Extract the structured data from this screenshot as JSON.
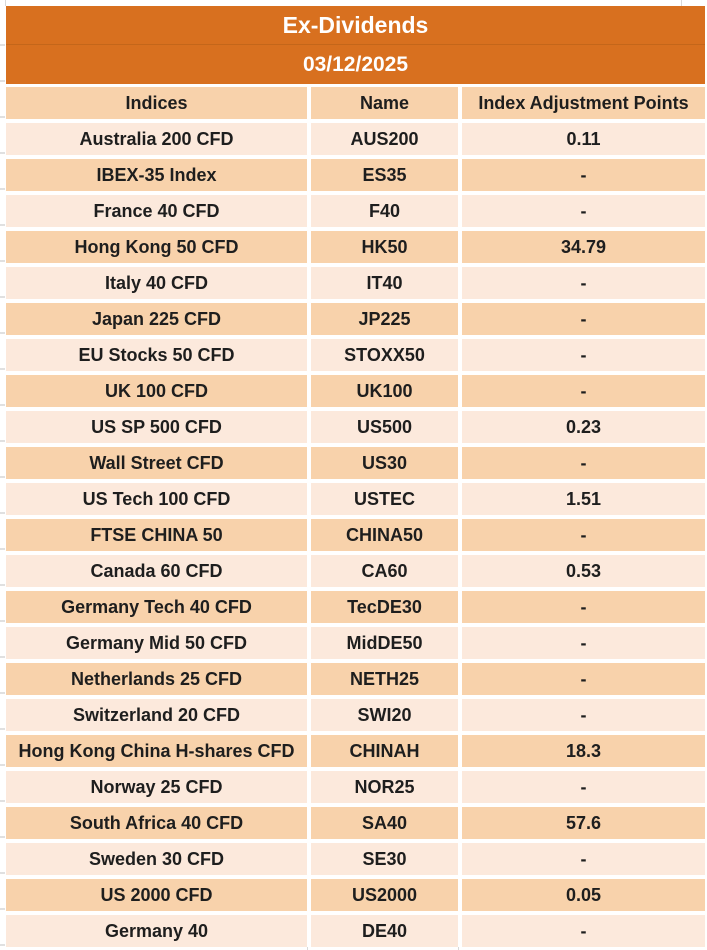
{
  "table": {
    "title": "Ex-Dividends",
    "date": "03/12/2025",
    "columns": [
      "Indices",
      "Name",
      "Index Adjustment Points"
    ],
    "rows": [
      {
        "indices": "Australia 200 CFD",
        "name": "AUS200",
        "points": "0.11"
      },
      {
        "indices": "IBEX-35 Index",
        "name": "ES35",
        "points": "-"
      },
      {
        "indices": "France 40 CFD",
        "name": "F40",
        "points": "-"
      },
      {
        "indices": "Hong Kong 50 CFD",
        "name": "HK50",
        "points": "34.79"
      },
      {
        "indices": "Italy 40 CFD",
        "name": "IT40",
        "points": "-"
      },
      {
        "indices": "Japan 225 CFD",
        "name": "JP225",
        "points": "-"
      },
      {
        "indices": "EU Stocks 50 CFD",
        "name": "STOXX50",
        "points": "-"
      },
      {
        "indices": "UK 100 CFD",
        "name": "UK100",
        "points": "-"
      },
      {
        "indices": "US SP 500 CFD",
        "name": "US500",
        "points": "0.23"
      },
      {
        "indices": "Wall Street CFD",
        "name": "US30",
        "points": "-"
      },
      {
        "indices": "US Tech 100 CFD",
        "name": "USTEC",
        "points": "1.51"
      },
      {
        "indices": "FTSE CHINA 50",
        "name": "CHINA50",
        "points": "-"
      },
      {
        "indices": "Canada 60 CFD",
        "name": "CA60",
        "points": "0.53"
      },
      {
        "indices": "Germany Tech 40 CFD",
        "name": "TecDE30",
        "points": "-"
      },
      {
        "indices": "Germany Mid 50 CFD",
        "name": "MidDE50",
        "points": "-"
      },
      {
        "indices": "Netherlands 25 CFD",
        "name": "NETH25",
        "points": "-"
      },
      {
        "indices": "Switzerland 20 CFD",
        "name": "SWI20",
        "points": "-"
      },
      {
        "indices": "Hong Kong China H-shares CFD",
        "name": "CHINAH",
        "points": "18.3"
      },
      {
        "indices": "Norway 25 CFD",
        "name": "NOR25",
        "points": "-"
      },
      {
        "indices": "South Africa 40 CFD",
        "name": "SA40",
        "points": "57.6"
      },
      {
        "indices": "Sweden 30 CFD",
        "name": "SE30",
        "points": "-"
      },
      {
        "indices": "US 2000 CFD",
        "name": "US2000",
        "points": "0.05"
      },
      {
        "indices": "Germany 40",
        "name": "DE40",
        "points": "-"
      }
    ]
  },
  "colors": {
    "header_orange": "#d8701f",
    "orange_divider": "#c4661a",
    "column_header_bg": "#f8d2ab",
    "row_light": "#fce9dc",
    "row_dark": "#f8d2ab",
    "title_text": "#ffffff",
    "body_text": "#1e1e1e",
    "gridline": "#d9d9d9"
  }
}
